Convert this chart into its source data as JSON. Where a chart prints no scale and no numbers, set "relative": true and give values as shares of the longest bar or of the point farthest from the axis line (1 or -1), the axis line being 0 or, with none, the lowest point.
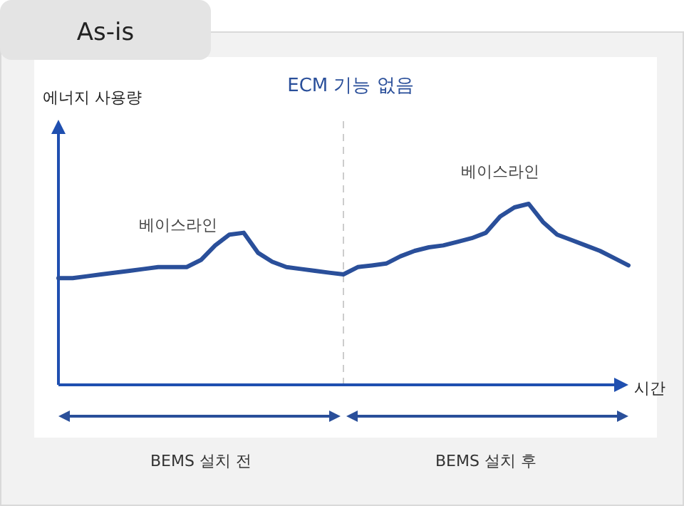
{
  "chart_data": {
    "type": "line",
    "title": "As-is",
    "subtitle": "ECM 기능 없음",
    "xlabel": "시간",
    "relative": true,
    "marker": "none",
    "line_style": "solid",
    "categories": [
      null,
      null,
      null,
      null,
      null,
      null,
      null,
      null,
      null,
      null,
      null,
      null,
      null,
      null,
      null,
      null,
      null,
      null,
      null,
      null,
      null,
      null,
      null,
      null,
      null,
      null,
      null,
      null,
      null,
      null,
      null,
      null,
      null,
      null,
      null,
      null,
      null,
      null,
      null,
      null,
      null
    ],
    "series": [
      {
        "color": "#2a4f9a",
        "values": [
          0.59,
          0.59,
          0.6,
          0.61,
          0.62,
          0.63,
          0.64,
          0.65,
          0.65,
          0.65,
          0.69,
          0.77,
          0.83,
          0.84,
          0.73,
          0.68,
          0.65,
          0.64,
          0.63,
          0.62,
          0.61,
          0.65,
          0.66,
          0.67,
          0.71,
          0.74,
          0.76,
          0.77,
          0.79,
          0.81,
          0.84,
          0.93,
          0.98,
          1.0,
          0.9,
          0.83,
          0.8,
          0.77,
          0.74,
          0.7,
          0.66
        ]
      }
    ],
    "annotations": [
      "에너지 사용량",
      "베이스라인",
      "베이스라인",
      "BEMS 설치 전",
      "BEMS 설치 후"
    ]
  }
}
